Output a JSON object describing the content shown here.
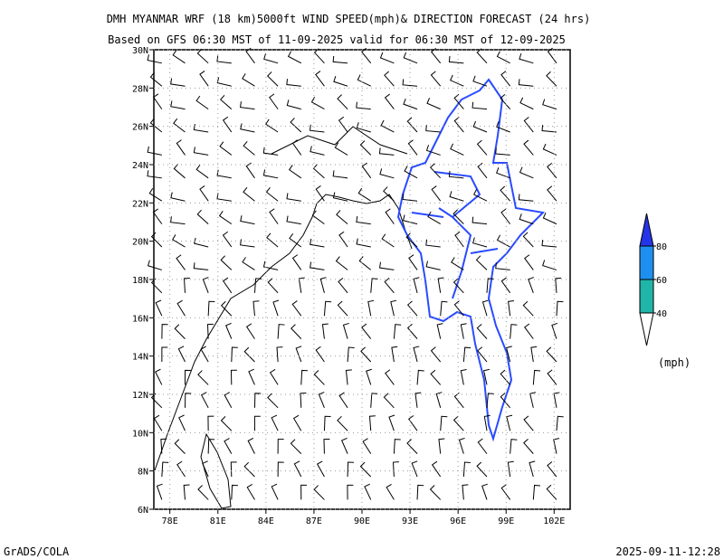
{
  "title": [
    "DMH MYANMAR WRF (18 km)5000ft WIND SPEED(mph)& DIRECTION FORECAST (24 hrs)",
    "Based on GFS 06:30 MST of 11-09-2025 valid for 06:30 MST of 12-09-2025"
  ],
  "map": {
    "lon_range": [
      77,
      103
    ],
    "lat_range": [
      6,
      30
    ],
    "lon_ticks": [
      {
        "value": 78,
        "label": "78E"
      },
      {
        "value": 81,
        "label": "81E"
      },
      {
        "value": 84,
        "label": "84E"
      },
      {
        "value": 87,
        "label": "87E"
      },
      {
        "value": 90,
        "label": "90E"
      },
      {
        "value": 93,
        "label": "93E"
      },
      {
        "value": 96,
        "label": "96E"
      },
      {
        "value": 99,
        "label": "99E"
      },
      {
        "value": 102,
        "label": "102E"
      }
    ],
    "lat_ticks": [
      {
        "value": 6,
        "label": "6N"
      },
      {
        "value": 8,
        "label": "8N"
      },
      {
        "value": 10,
        "label": "10N"
      },
      {
        "value": 12,
        "label": "12N"
      },
      {
        "value": 14,
        "label": "14N"
      },
      {
        "value": 16,
        "label": "16N"
      },
      {
        "value": 18,
        "label": "18N"
      },
      {
        "value": 20,
        "label": "20N"
      },
      {
        "value": 22,
        "label": "22N"
      },
      {
        "value": 24,
        "label": "24N"
      },
      {
        "value": 26,
        "label": "26N"
      },
      {
        "value": 28,
        "label": "28N"
      },
      {
        "value": 30,
        "label": "30N"
      }
    ]
  },
  "colorbar": {
    "range": [
      40,
      80
    ],
    "ticks": [
      40,
      60,
      80
    ],
    "unit": "(mph)"
  },
  "footer": {
    "left": "GrADS/COLA",
    "right": "2025-09-11-12:28"
  }
}
